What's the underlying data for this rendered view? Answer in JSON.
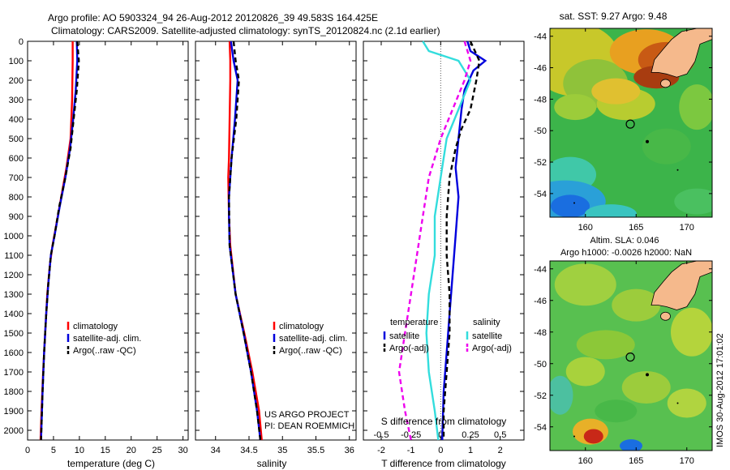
{
  "header": {
    "title_line1": "Argo profile: AO 5903324_94 26-Aug-2012 20120826_39 49.583S 164.425E",
    "title_line2": "Climatology: CARS2009. Satellite-adjusted climatology: synTS_20120824.nc (2.1d earlier)"
  },
  "footer": {
    "project_line1": "US ARGO PROJECT",
    "project_line2": "PI: DEAN ROEMMICH",
    "timestamp": "IMOS 30-Aug-2012 17:01:02"
  },
  "colors": {
    "climatology": "#ff0000",
    "satellite": "#0000dd",
    "argo": "#000000",
    "sal_satellite": "#33dddd",
    "sal_argo": "#ee00ee",
    "land": "#f5b98c"
  },
  "chart_data": [
    {
      "type": "line",
      "id": "temperature",
      "xlabel": "temperature (deg C)",
      "ylabel": "",
      "xlim": [
        0,
        31
      ],
      "ylim": [
        0,
        2050
      ],
      "xticks": [
        0,
        5,
        10,
        15,
        20,
        25,
        30
      ],
      "yticks": [
        0,
        100,
        200,
        300,
        400,
        500,
        600,
        700,
        800,
        900,
        1000,
        1100,
        1200,
        1300,
        1400,
        1500,
        1600,
        1700,
        1800,
        1900,
        2000
      ],
      "legend": [
        "climatology",
        "satellite-adj. clim.",
        "Argo(..raw -QC)"
      ],
      "series": [
        {
          "name": "climatology",
          "style": "solid",
          "color": "#ff0000",
          "points": [
            [
              8.7,
              0
            ],
            [
              8.7,
              100
            ],
            [
              8.6,
              300
            ],
            [
              8.3,
              500
            ],
            [
              7.5,
              650
            ],
            [
              6.5,
              800
            ],
            [
              5.5,
              950
            ],
            [
              4.8,
              1050
            ],
            [
              4.3,
              1150
            ],
            [
              3.8,
              1300
            ],
            [
              3.4,
              1500
            ],
            [
              3.0,
              1700
            ],
            [
              2.7,
              1900
            ],
            [
              2.5,
              2050
            ]
          ]
        },
        {
          "name": "satellite-adj. clim.",
          "style": "solid",
          "color": "#0000dd",
          "points": [
            [
              9.5,
              0
            ],
            [
              9.6,
              100
            ],
            [
              9.3,
              250
            ],
            [
              8.8,
              400
            ],
            [
              8.2,
              550
            ],
            [
              7.3,
              700
            ],
            [
              6.2,
              850
            ],
            [
              5.2,
              1000
            ],
            [
              4.5,
              1100
            ],
            [
              4.0,
              1250
            ],
            [
              3.6,
              1400
            ],
            [
              3.2,
              1600
            ],
            [
              2.9,
              1800
            ],
            [
              2.6,
              2050
            ]
          ]
        },
        {
          "name": "Argo(..raw -QC)",
          "style": "dashed",
          "color": "#000000",
          "points": [
            [
              9.6,
              0
            ],
            [
              9.9,
              100
            ],
            [
              9.5,
              250
            ],
            [
              8.9,
              400
            ],
            [
              8.3,
              550
            ],
            [
              7.3,
              700
            ],
            [
              6.1,
              850
            ],
            [
              5.2,
              1000
            ],
            [
              4.5,
              1100
            ],
            [
              4.0,
              1250
            ],
            [
              3.6,
              1400
            ],
            [
              3.2,
              1600
            ],
            [
              2.9,
              1800
            ],
            [
              2.6,
              2050
            ]
          ]
        }
      ]
    },
    {
      "type": "line",
      "id": "salinity",
      "xlabel": "salinity",
      "ylabel": "",
      "xlim": [
        33.7,
        36.1
      ],
      "ylim": [
        0,
        2050
      ],
      "xticks": [
        34,
        34.5,
        35,
        35.5,
        36
      ],
      "legend": [
        "climatology",
        "satellite-adj. clim.",
        "Argo(..raw -QC)"
      ],
      "series": [
        {
          "name": "climatology",
          "style": "solid",
          "color": "#ff0000",
          "points": [
            [
              34.21,
              0
            ],
            [
              34.22,
              100
            ],
            [
              34.22,
              200
            ],
            [
              34.21,
              400
            ],
            [
              34.2,
              600
            ],
            [
              34.19,
              700
            ],
            [
              34.2,
              900
            ],
            [
              34.22,
              1050
            ],
            [
              34.3,
              1300
            ],
            [
              34.43,
              1500
            ],
            [
              34.55,
              1700
            ],
            [
              34.65,
              1900
            ],
            [
              34.69,
              2050
            ]
          ]
        },
        {
          "name": "satellite-adj. clim.",
          "style": "solid",
          "color": "#0000dd",
          "points": [
            [
              34.23,
              0
            ],
            [
              34.27,
              100
            ],
            [
              34.33,
              200
            ],
            [
              34.29,
              400
            ],
            [
              34.24,
              600
            ],
            [
              34.2,
              800
            ],
            [
              34.2,
              900
            ],
            [
              34.21,
              1050
            ],
            [
              34.3,
              1300
            ],
            [
              34.42,
              1500
            ],
            [
              34.53,
              1700
            ],
            [
              34.62,
              1900
            ],
            [
              34.67,
              2050
            ]
          ]
        },
        {
          "name": "Argo(..raw -QC)",
          "style": "dashed",
          "color": "#000000",
          "points": [
            [
              34.27,
              0
            ],
            [
              34.3,
              100
            ],
            [
              34.35,
              200
            ],
            [
              34.31,
              400
            ],
            [
              34.24,
              600
            ],
            [
              34.2,
              800
            ],
            [
              34.21,
              1050
            ],
            [
              34.3,
              1300
            ],
            [
              34.42,
              1500
            ],
            [
              34.53,
              1700
            ],
            [
              34.62,
              1900
            ],
            [
              34.67,
              2050
            ]
          ]
        }
      ]
    },
    {
      "type": "line",
      "id": "differences",
      "xlabel": "T difference from climatology",
      "xlabel2": "S difference from climatology",
      "xlim": [
        -2.6,
        2.8
      ],
      "xticks": [
        -2,
        -1,
        0,
        1,
        2
      ],
      "x2ticks": [
        "-0.5",
        "-0.25",
        "0",
        "0.25",
        "0.5"
      ],
      "ylim": [
        0,
        2050
      ],
      "legend_titles": [
        "temperature",
        "salinity"
      ],
      "legend_temperature": [
        "satellite",
        "Argo(-adj)"
      ],
      "legend_salinity": [
        "satellite",
        "Argo(-adj)"
      ],
      "series": [
        {
          "name": "T satellite",
          "style": "solid",
          "color": "#0000dd",
          "points": [
            [
              0.9,
              0
            ],
            [
              1.0,
              50
            ],
            [
              1.5,
              100
            ],
            [
              1.1,
              150
            ],
            [
              0.8,
              250
            ],
            [
              0.7,
              350
            ],
            [
              0.6,
              500
            ],
            [
              0.5,
              650
            ],
            [
              0.6,
              800
            ],
            [
              0.5,
              1000
            ],
            [
              0.4,
              1200
            ],
            [
              0.3,
              1400
            ],
            [
              0.2,
              1600
            ],
            [
              0.1,
              1800
            ],
            [
              0.05,
              2050
            ]
          ]
        },
        {
          "name": "T Argo(-adj)",
          "style": "dashed",
          "color": "#000000",
          "points": [
            [
              1.0,
              0
            ],
            [
              1.3,
              100
            ],
            [
              1.2,
              200
            ],
            [
              1.0,
              350
            ],
            [
              0.7,
              450
            ],
            [
              0.5,
              550
            ],
            [
              0.3,
              700
            ],
            [
              0.2,
              900
            ],
            [
              0.2,
              1100
            ],
            [
              0.3,
              1300
            ],
            [
              0.3,
              1500
            ],
            [
              0.2,
              1700
            ],
            [
              0.1,
              1900
            ],
            [
              0.1,
              2050
            ]
          ]
        },
        {
          "name": "S satellite",
          "style": "solid",
          "color": "#33dddd",
          "points": [
            [
              -0.15,
              0
            ],
            [
              -0.1,
              50
            ],
            [
              0.15,
              100
            ],
            [
              0.25,
              200
            ],
            [
              0.15,
              350
            ],
            [
              0.05,
              500
            ],
            [
              0.0,
              700
            ],
            [
              -0.05,
              900
            ],
            [
              -0.05,
              1100
            ],
            [
              -0.1,
              1300
            ],
            [
              -0.12,
              1500
            ],
            [
              -0.1,
              1700
            ],
            [
              -0.05,
              1900
            ],
            [
              -0.02,
              2050
            ]
          ]
        },
        {
          "name": "S Argo(-adj)",
          "style": "dashed",
          "color": "#ee00ee",
          "points": [
            [
              0.2,
              0
            ],
            [
              0.25,
              100
            ],
            [
              0.2,
              200
            ],
            [
              0.1,
              350
            ],
            [
              0.0,
              500
            ],
            [
              -0.1,
              700
            ],
            [
              -0.15,
              900
            ],
            [
              -0.2,
              1100
            ],
            [
              -0.25,
              1300
            ],
            [
              -0.3,
              1500
            ],
            [
              -0.35,
              1700
            ],
            [
              -0.3,
              1900
            ],
            [
              -0.25,
              2050
            ]
          ]
        }
      ]
    },
    {
      "type": "heatmap",
      "id": "sst_map",
      "title": "sat. SST: 9.27 Argo: 9.48",
      "xlim": [
        156.5,
        172.5
      ],
      "ylim": [
        -55.5,
        -43.5
      ],
      "xticks": [
        160,
        165,
        170
      ],
      "yticks": [
        -44,
        -46,
        -48,
        -50,
        -52,
        -54
      ],
      "argo_position": {
        "lon": 164.425,
        "lat": -49.583
      }
    },
    {
      "type": "heatmap",
      "id": "sla_map",
      "title_line1": "Altim. SLA: 0.046",
      "title_line2": "Argo h1000: -0.0026 h2000: NaN",
      "xlim": [
        156.5,
        172.5
      ],
      "ylim": [
        -55.5,
        -43.5
      ],
      "xticks": [
        160,
        165,
        170
      ],
      "yticks": [
        -44,
        -46,
        -48,
        -50,
        -52,
        -54
      ],
      "argo_position": {
        "lon": 164.425,
        "lat": -49.583
      }
    }
  ]
}
